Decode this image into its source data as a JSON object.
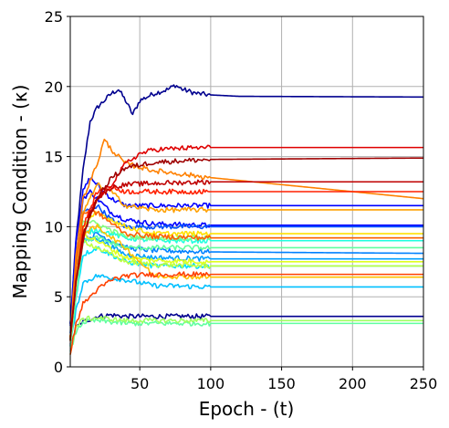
{
  "chart_data": {
    "type": "line",
    "xlabel": "Epoch - (t)",
    "ylabel": "Mapping Condition - (κ)",
    "xlim": [
      1,
      250
    ],
    "ylim": [
      0,
      25
    ],
    "xticks": [
      50,
      100,
      150,
      200,
      250
    ],
    "xtick_labels": [
      "50",
      "100",
      "150",
      "200",
      "250"
    ],
    "yticks": [
      0,
      5,
      10,
      15,
      20,
      25
    ],
    "ytick_labels": [
      "0",
      "5",
      "10",
      "15",
      "20",
      "25"
    ],
    "grid": true,
    "legend": "none",
    "series": [
      {
        "color": "#00008f",
        "values": [
          [
            1,
            3
          ],
          [
            5,
            9
          ],
          [
            10,
            14
          ],
          [
            15,
            17.5
          ],
          [
            20,
            18.5
          ],
          [
            30,
            19.5
          ],
          [
            35,
            19.8
          ],
          [
            40,
            19
          ],
          [
            45,
            18
          ],
          [
            50,
            19
          ],
          [
            60,
            19.5
          ],
          [
            70,
            19.8
          ],
          [
            75,
            20.1
          ],
          [
            80,
            19.8
          ],
          [
            90,
            19.5
          ],
          [
            100,
            19.4
          ],
          [
            120,
            19.3
          ],
          [
            250,
            19.25
          ]
        ]
      },
      {
        "color": "#00008f",
        "values": [
          [
            1,
            1.5
          ],
          [
            5,
            2.8
          ],
          [
            10,
            3.2
          ],
          [
            20,
            3.6
          ],
          [
            30,
            3.7
          ],
          [
            40,
            3.6
          ],
          [
            60,
            3.6
          ],
          [
            80,
            3.6
          ],
          [
            250,
            3.6
          ]
        ]
      },
      {
        "color": "#0000ff",
        "values": [
          [
            1,
            3
          ],
          [
            5,
            9
          ],
          [
            10,
            12.5
          ],
          [
            15,
            13.5
          ],
          [
            20,
            13
          ],
          [
            30,
            12
          ],
          [
            40,
            11.5
          ],
          [
            60,
            11.5
          ],
          [
            100,
            11.5
          ],
          [
            250,
            11.5
          ]
        ]
      },
      {
        "color": "#0000ff",
        "values": [
          [
            1,
            3
          ],
          [
            5,
            8
          ],
          [
            10,
            12
          ],
          [
            15,
            12.5
          ],
          [
            20,
            12
          ],
          [
            30,
            11
          ],
          [
            40,
            10.5
          ],
          [
            60,
            10.2
          ],
          [
            100,
            10.1
          ],
          [
            250,
            10.1
          ]
        ]
      },
      {
        "color": "#0050ff",
        "values": [
          [
            1,
            2.5
          ],
          [
            5,
            7
          ],
          [
            10,
            11
          ],
          [
            20,
            11.5
          ],
          [
            30,
            10.5
          ],
          [
            40,
            10
          ],
          [
            60,
            10
          ],
          [
            100,
            10
          ],
          [
            250,
            10
          ]
        ]
      },
      {
        "color": "#0080ff",
        "values": [
          [
            1,
            2
          ],
          [
            5,
            6
          ],
          [
            10,
            9
          ],
          [
            20,
            9.5
          ],
          [
            40,
            8.5
          ],
          [
            60,
            8.3
          ],
          [
            100,
            8.2
          ],
          [
            250,
            8.1
          ]
        ]
      },
      {
        "color": "#00a0ff",
        "values": [
          [
            1,
            2
          ],
          [
            5,
            6
          ],
          [
            10,
            9
          ],
          [
            20,
            9.2
          ],
          [
            40,
            8
          ],
          [
            60,
            7.8
          ],
          [
            100,
            7.7
          ],
          [
            250,
            7.7
          ]
        ]
      },
      {
        "color": "#00c0ff",
        "values": [
          [
            1,
            1.5
          ],
          [
            5,
            4
          ],
          [
            10,
            6
          ],
          [
            20,
            6.5
          ],
          [
            40,
            6.2
          ],
          [
            60,
            5.8
          ],
          [
            100,
            5.7
          ],
          [
            250,
            5.7
          ]
        ]
      },
      {
        "color": "#00e0ff",
        "values": [
          [
            1,
            2
          ],
          [
            5,
            5
          ],
          [
            10,
            8
          ],
          [
            20,
            8.5
          ],
          [
            40,
            7.5
          ],
          [
            60,
            7.2
          ],
          [
            100,
            7.2
          ],
          [
            250,
            7.2
          ]
        ]
      },
      {
        "color": "#20ffdf",
        "values": [
          [
            1,
            2
          ],
          [
            5,
            6
          ],
          [
            10,
            9.5
          ],
          [
            20,
            9.8
          ],
          [
            40,
            9.2
          ],
          [
            60,
            9
          ],
          [
            100,
            9
          ],
          [
            250,
            9
          ]
        ]
      },
      {
        "color": "#60ff9f",
        "values": [
          [
            1,
            1.5
          ],
          [
            5,
            5
          ],
          [
            10,
            9
          ],
          [
            20,
            9.2
          ],
          [
            40,
            8.5
          ],
          [
            60,
            8.5
          ],
          [
            100,
            8.5
          ],
          [
            250,
            8.5
          ]
        ]
      },
      {
        "color": "#60ff9f",
        "values": [
          [
            1,
            1
          ],
          [
            5,
            2.5
          ],
          [
            10,
            3.2
          ],
          [
            20,
            3.3
          ],
          [
            40,
            3.1
          ],
          [
            60,
            3.1
          ],
          [
            100,
            3.1
          ],
          [
            250,
            3.1
          ]
        ]
      },
      {
        "color": "#80ff80",
        "values": [
          [
            1,
            2
          ],
          [
            5,
            7
          ],
          [
            10,
            10.5
          ],
          [
            20,
            10.2
          ],
          [
            40,
            9.3
          ],
          [
            60,
            9.2
          ],
          [
            100,
            9.2
          ],
          [
            250,
            9.2
          ]
        ]
      },
      {
        "color": "#9fff60",
        "values": [
          [
            1,
            1
          ],
          [
            5,
            2.8
          ],
          [
            10,
            3.4
          ],
          [
            20,
            3.5
          ],
          [
            40,
            3.3
          ],
          [
            60,
            3.3
          ],
          [
            100,
            3.3
          ],
          [
            250,
            3.3
          ]
        ]
      },
      {
        "color": "#c0ff40",
        "values": [
          [
            1,
            2
          ],
          [
            5,
            6
          ],
          [
            10,
            9
          ],
          [
            20,
            8.5
          ],
          [
            40,
            7.5
          ],
          [
            60,
            7.3
          ],
          [
            100,
            7.2
          ],
          [
            250,
            7.2
          ]
        ]
      },
      {
        "color": "#dfff20",
        "values": [
          [
            1,
            2
          ],
          [
            5,
            6
          ],
          [
            10,
            9.5
          ],
          [
            20,
            9
          ],
          [
            40,
            7.8
          ],
          [
            60,
            7.6
          ],
          [
            100,
            7.5
          ],
          [
            250,
            7.5
          ]
        ]
      },
      {
        "color": "#ffe000",
        "values": [
          [
            1,
            2
          ],
          [
            5,
            6
          ],
          [
            10,
            10
          ],
          [
            20,
            11
          ],
          [
            40,
            10
          ],
          [
            60,
            9.5
          ],
          [
            100,
            9.5
          ],
          [
            250,
            9.5
          ]
        ]
      },
      {
        "color": "#ffc000",
        "values": [
          [
            1,
            2
          ],
          [
            5,
            6
          ],
          [
            10,
            9.5
          ],
          [
            20,
            10
          ],
          [
            40,
            8.5
          ],
          [
            60,
            6.5
          ],
          [
            100,
            6.4
          ],
          [
            250,
            6.4
          ]
        ]
      },
      {
        "color": "#ffa000",
        "values": [
          [
            1,
            2
          ],
          [
            5,
            7
          ],
          [
            10,
            11
          ],
          [
            20,
            13
          ],
          [
            30,
            12.5
          ],
          [
            40,
            11.5
          ],
          [
            60,
            11.2
          ],
          [
            100,
            11.2
          ],
          [
            250,
            11.2
          ]
        ]
      },
      {
        "color": "#ff8000",
        "values": [
          [
            1,
            2
          ],
          [
            5,
            8
          ],
          [
            10,
            12
          ],
          [
            20,
            14.5
          ],
          [
            25,
            16.2
          ],
          [
            30,
            15.5
          ],
          [
            40,
            14.5
          ],
          [
            60,
            14
          ],
          [
            100,
            13.5
          ],
          [
            150,
            13
          ],
          [
            200,
            12.5
          ],
          [
            250,
            12
          ]
        ]
      },
      {
        "color": "#ff6000",
        "values": [
          [
            1,
            2
          ],
          [
            5,
            7
          ],
          [
            10,
            11
          ],
          [
            20,
            11
          ],
          [
            40,
            9.5
          ],
          [
            60,
            9.3
          ],
          [
            100,
            9.2
          ],
          [
            250,
            9.2
          ]
        ]
      },
      {
        "color": "#ff4000",
        "values": [
          [
            1,
            1
          ],
          [
            5,
            3
          ],
          [
            10,
            4.5
          ],
          [
            20,
            5.5
          ],
          [
            30,
            6.2
          ],
          [
            40,
            6.5
          ],
          [
            60,
            6.6
          ],
          [
            100,
            6.6
          ],
          [
            250,
            6.6
          ]
        ]
      },
      {
        "color": "#ff2000",
        "values": [
          [
            1,
            2
          ],
          [
            5,
            6
          ],
          [
            10,
            10
          ],
          [
            20,
            12.5
          ],
          [
            30,
            12.8
          ],
          [
            40,
            12.5
          ],
          [
            60,
            12.5
          ],
          [
            100,
            12.5
          ],
          [
            250,
            12.5
          ]
        ]
      },
      {
        "color": "#df0000",
        "values": [
          [
            1,
            2
          ],
          [
            5,
            6
          ],
          [
            10,
            9
          ],
          [
            15,
            11
          ],
          [
            20,
            12
          ],
          [
            30,
            13
          ],
          [
            40,
            14.5
          ],
          [
            50,
            15.2
          ],
          [
            60,
            15.5
          ],
          [
            80,
            15.6
          ],
          [
            100,
            15.65
          ],
          [
            250,
            15.65
          ]
        ]
      },
      {
        "color": "#bf0000",
        "values": [
          [
            1,
            2
          ],
          [
            5,
            6
          ],
          [
            10,
            9
          ],
          [
            15,
            11
          ],
          [
            20,
            12
          ],
          [
            30,
            12.8
          ],
          [
            40,
            13
          ],
          [
            60,
            13.1
          ],
          [
            100,
            13.2
          ],
          [
            250,
            13.2
          ]
        ]
      },
      {
        "color": "#9f0000",
        "values": [
          [
            1,
            2
          ],
          [
            5,
            6
          ],
          [
            10,
            9.5
          ],
          [
            20,
            12
          ],
          [
            30,
            13.5
          ],
          [
            40,
            14.2
          ],
          [
            60,
            14.6
          ],
          [
            100,
            14.8
          ],
          [
            250,
            14.9
          ]
        ]
      }
    ]
  }
}
